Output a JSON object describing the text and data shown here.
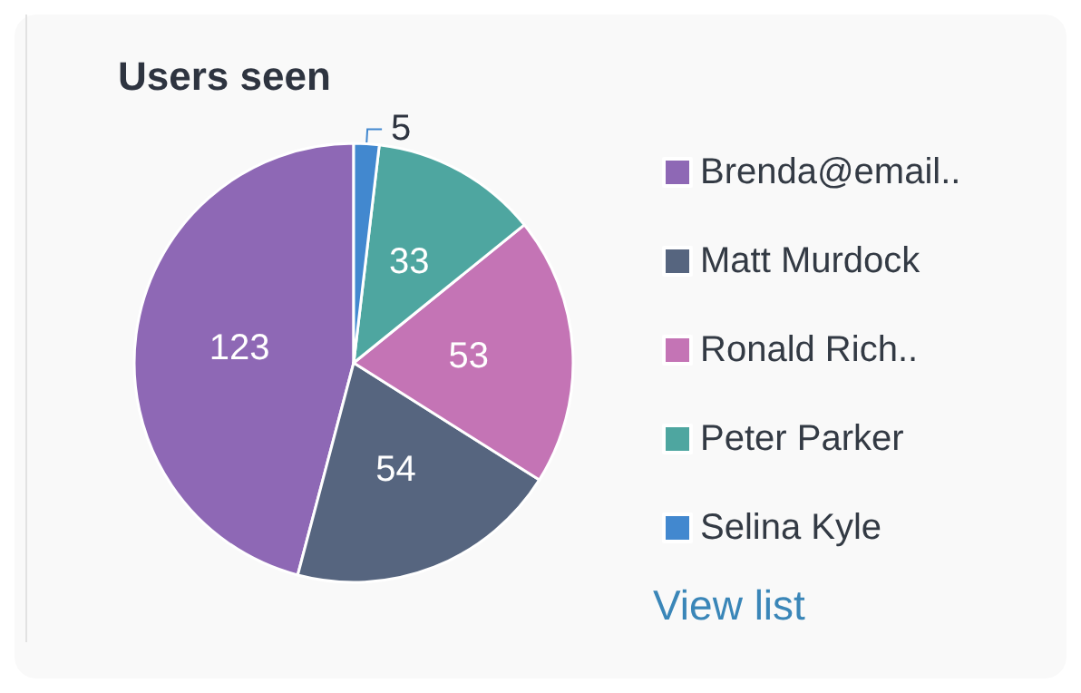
{
  "chart_data": {
    "type": "pie",
    "title": "Users seen",
    "categories": [
      "Brenda@email..",
      "Matt Murdock",
      "Ronald Rich..",
      "Peter Parker",
      "Selina Kyle"
    ],
    "values": [
      123,
      54,
      53,
      33,
      5
    ],
    "colors": [
      "#8e68b5",
      "#56657f",
      "#c474b5",
      "#4ea6a0",
      "#4288cf"
    ],
    "data_labels": true,
    "legend": "right",
    "annotations": [
      "View list"
    ]
  }
}
